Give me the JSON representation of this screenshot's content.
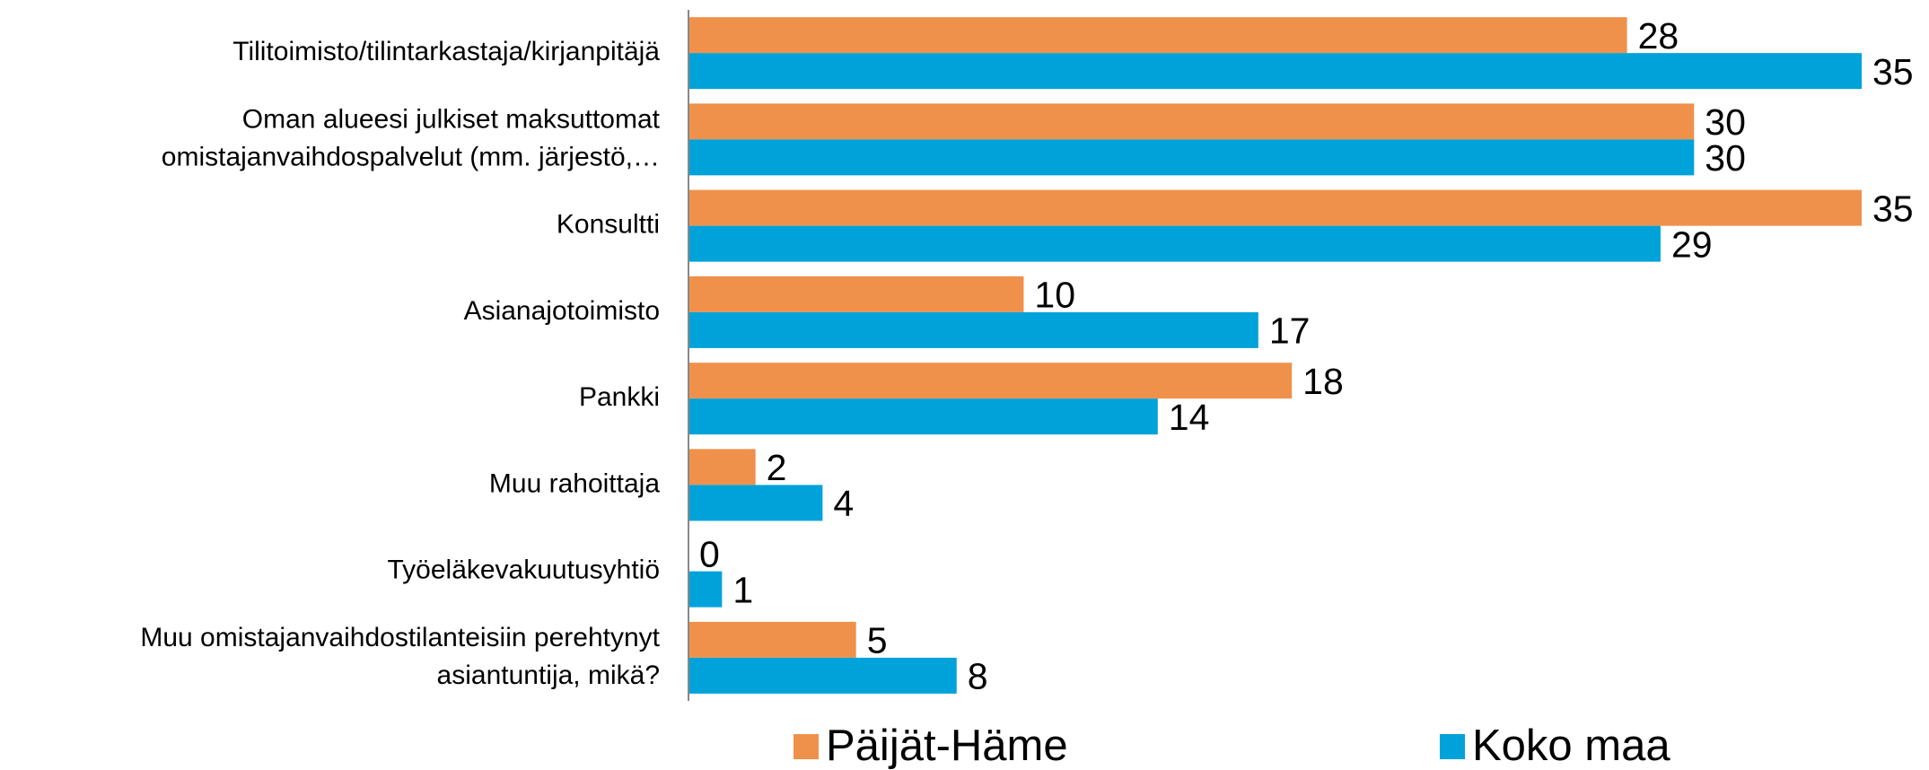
{
  "chart_data": {
    "type": "bar",
    "orientation": "horizontal",
    "categories": [
      [
        "Tilitoimisto/tilintarkastaja/kirjanpitäjä"
      ],
      [
        "Oman alueesi julkiset maksuttomat",
        "omistajanvaihdospalvelut (mm. järjestö,…"
      ],
      [
        "Konsultti"
      ],
      [
        "Asianajotoimisto"
      ],
      [
        "Pankki"
      ],
      [
        "Muu rahoittaja"
      ],
      [
        "Työeläkevakuutusyhtiö"
      ],
      [
        "Muu omistajanvaihdostilanteisiin perehtynyt",
        "asiantuntija, mikä?"
      ]
    ],
    "series": [
      {
        "name": "Päijät-Häme",
        "color": "#f0914b",
        "values": [
          28,
          30,
          35,
          10,
          18,
          2,
          0,
          5
        ]
      },
      {
        "name": "Koko maa",
        "color": "#00a2da",
        "values": [
          35,
          30,
          29,
          17,
          14,
          4,
          1,
          8
        ]
      }
    ],
    "xlim": [
      0,
      35
    ],
    "legend": "bottom"
  }
}
